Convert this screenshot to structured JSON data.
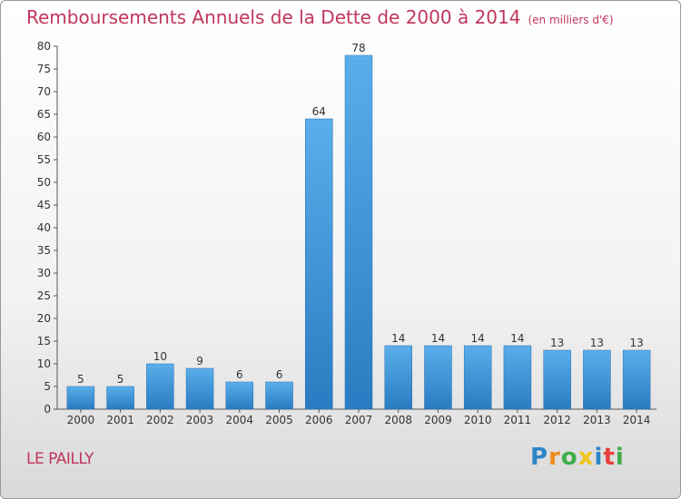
{
  "chart_data": {
    "type": "bar",
    "title": "Remboursements Annuels de la Dette de 2000 à 2014",
    "unit": "(en milliers d'€)",
    "categories": [
      "2000",
      "2001",
      "2002",
      "2003",
      "2004",
      "2005",
      "2006",
      "2007",
      "2008",
      "2009",
      "2010",
      "2011",
      "2012",
      "2013",
      "2014"
    ],
    "values": [
      5,
      5,
      10,
      9,
      6,
      6,
      64,
      78,
      14,
      14,
      14,
      14,
      13,
      13,
      13
    ],
    "ylim": [
      0,
      80
    ],
    "yticks": [
      0,
      5,
      10,
      15,
      20,
      25,
      30,
      35,
      40,
      45,
      50,
      55,
      60,
      65,
      70,
      75,
      80
    ],
    "grid": false,
    "bar_color": "#3a8fd6"
  },
  "commune": "LE PAILLY",
  "logo": {
    "letters": [
      "P",
      "r",
      "o",
      "x",
      "i",
      "t",
      "i"
    ],
    "colors": [
      "#2e86c8",
      "#f08a1c",
      "#3fae49",
      "#f0c419",
      "#2e86c8",
      "#e8403b",
      "#3fae49"
    ]
  }
}
